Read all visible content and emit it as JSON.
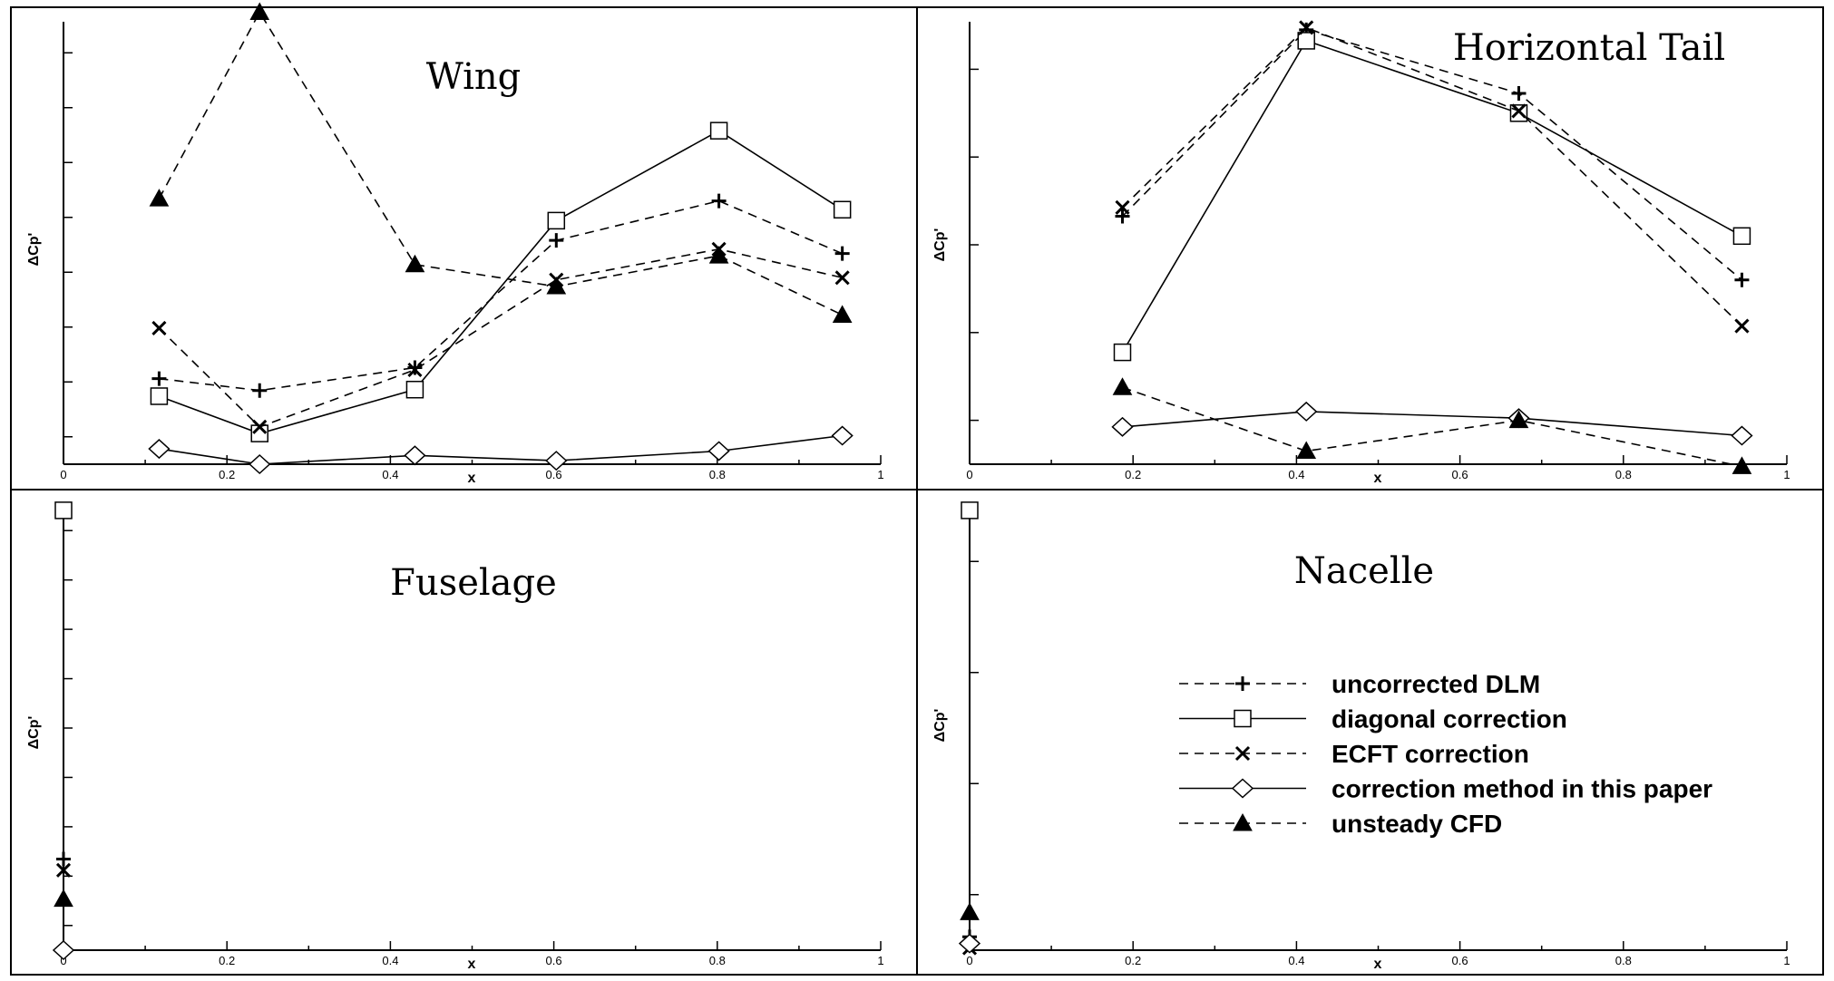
{
  "figure": {
    "series_styles": [
      {
        "name": "uncorrected DLM",
        "marker": "plus",
        "dash": "10,7"
      },
      {
        "name": "diagonal correction",
        "marker": "square",
        "dash": ""
      },
      {
        "name": "ECFT correction",
        "marker": "x",
        "dash": "10,7"
      },
      {
        "name": "correction method in this paper",
        "marker": "diamond",
        "dash": ""
      },
      {
        "name": "unsteady CFD",
        "marker": "triangle",
        "dash": "10,7"
      }
    ],
    "colors": {
      "line": "#000000",
      "background": "#ffffff"
    }
  },
  "chart_data": [
    {
      "type": "line",
      "title": "Wing",
      "xlabel": "x",
      "ylabel": "ΔCp'",
      "xlim": [
        0,
        1
      ],
      "ylim": [
        0,
        1
      ],
      "xticks": [
        "0",
        "0.2",
        "0.4",
        "0.6",
        "0.8",
        "1"
      ],
      "yticks_count": 8,
      "x": [
        0.117,
        0.24,
        0.43,
        0.603,
        0.802,
        0.953
      ],
      "series": [
        {
          "name": "uncorrected DLM",
          "values": [
            0.195,
            0.168,
            0.22,
            0.51,
            0.6,
            0.48
          ]
        },
        {
          "name": "diagonal correction",
          "values": [
            0.155,
            0.07,
            0.17,
            0.555,
            0.76,
            0.58
          ]
        },
        {
          "name": "ECFT correction",
          "values": [
            0.31,
            0.085,
            0.215,
            0.42,
            0.49,
            0.425
          ]
        },
        {
          "name": "correction method in this paper",
          "values": [
            0.035,
            0.0,
            0.02,
            0.008,
            0.03,
            0.065
          ]
        },
        {
          "name": "unsteady CFD",
          "values": [
            0.605,
            1.03,
            0.455,
            0.405,
            0.475,
            0.34
          ]
        }
      ]
    },
    {
      "type": "line",
      "title": "Horizontal Tail",
      "xlabel": "x",
      "ylabel": "ΔCp'",
      "xlim": [
        0,
        1
      ],
      "ylim": [
        0,
        1
      ],
      "xticks": [
        "0",
        "0.2",
        "0.4",
        "0.6",
        "0.8",
        "1"
      ],
      "yticks_count": 5,
      "x": [
        0.187,
        0.412,
        0.672,
        0.945
      ],
      "series": [
        {
          "name": "uncorrected DLM",
          "values": [
            0.565,
            0.99,
            0.845,
            0.42
          ]
        },
        {
          "name": "diagonal correction",
          "values": [
            0.255,
            0.965,
            0.8,
            0.52
          ]
        },
        {
          "name": "ECFT correction",
          "values": [
            0.585,
            0.995,
            0.805,
            0.315
          ]
        },
        {
          "name": "correction method in this paper",
          "values": [
            0.085,
            0.12,
            0.105,
            0.065
          ]
        },
        {
          "name": "unsteady CFD",
          "values": [
            0.175,
            0.03,
            0.1,
            -0.005
          ]
        }
      ]
    },
    {
      "type": "line",
      "title": "Fuselage",
      "xlabel": "x",
      "ylabel": "ΔCp'",
      "xlim": [
        0,
        1
      ],
      "ylim": [
        0,
        1
      ],
      "xticks": [
        "0",
        "0.2",
        "0.4",
        "0.6",
        "0.8",
        "1"
      ],
      "yticks_count": 9,
      "x": [
        0.0
      ],
      "series": [
        {
          "name": "uncorrected DLM",
          "values": [
            0.205
          ]
        },
        {
          "name": "diagonal correction",
          "values": [
            0.99
          ]
        },
        {
          "name": "ECFT correction",
          "values": [
            0.18
          ]
        },
        {
          "name": "correction method in this paper",
          "values": [
            0.0
          ]
        },
        {
          "name": "unsteady CFD",
          "values": [
            0.115
          ]
        }
      ]
    },
    {
      "type": "line",
      "title": "Nacelle",
      "xlabel": "x",
      "ylabel": "ΔCp'",
      "xlim": [
        0,
        1
      ],
      "ylim": [
        0,
        1
      ],
      "xticks": [
        "0",
        "0.2",
        "0.4",
        "0.6",
        "0.8",
        "1"
      ],
      "yticks_count": 4,
      "x": [
        0.0
      ],
      "series": [
        {
          "name": "uncorrected DLM",
          "values": [
            0.03
          ]
        },
        {
          "name": "diagonal correction",
          "values": [
            0.99
          ]
        },
        {
          "name": "ECFT correction",
          "values": [
            0.005
          ]
        },
        {
          "name": "correction method in this paper",
          "values": [
            0.015
          ]
        },
        {
          "name": "unsteady CFD",
          "values": [
            0.085
          ]
        }
      ]
    }
  ]
}
